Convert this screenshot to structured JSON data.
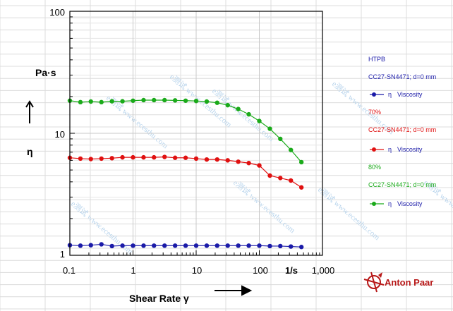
{
  "chart_data": {
    "type": "line",
    "xscale": "log",
    "yscale": "log",
    "xlim": [
      0.1,
      1000
    ],
    "ylim": [
      1,
      100
    ],
    "x_ticks": [
      "0.1",
      "1",
      "10",
      "100",
      "1/s",
      "1,000"
    ],
    "y_ticks": [
      "100",
      "10",
      "1"
    ],
    "x_label": "Shear Rate γ",
    "y_unit": "Pa·s",
    "y_symbol": "η",
    "grid": true,
    "legend_position": "right",
    "legend_groups": [
      {
        "title": "HTPB",
        "subtitle": "CC27-SN4471; d=0 mm",
        "symbol": "η",
        "label": "Viscosity",
        "color": "#1a1aa8"
      },
      {
        "title": "70%",
        "subtitle": "CC27-SN4471; d=0 mm",
        "symbol": "η",
        "label": "Viscosity",
        "color": "#e01010"
      },
      {
        "title": "80%",
        "subtitle": "CC27-SN4471; d=0 mm",
        "symbol": "η",
        "label": "Viscosity",
        "color": "#1aaa1a"
      }
    ],
    "series": [
      {
        "name": "HTPB",
        "color": "#1a1aa8",
        "x": [
          0.1,
          0.147,
          0.215,
          0.316,
          0.464,
          0.681,
          1.0,
          1.47,
          2.15,
          3.16,
          4.64,
          6.81,
          10,
          14.7,
          21.5,
          31.6,
          46.4,
          68.1,
          100,
          147,
          215,
          316,
          464
        ],
        "y": [
          1.21,
          1.2,
          1.21,
          1.23,
          1.19,
          1.2,
          1.2,
          1.2,
          1.2,
          1.2,
          1.2,
          1.2,
          1.2,
          1.2,
          1.2,
          1.2,
          1.2,
          1.2,
          1.2,
          1.19,
          1.19,
          1.18,
          1.17
        ]
      },
      {
        "name": "70%",
        "color": "#e01010",
        "x": [
          0.1,
          0.147,
          0.215,
          0.316,
          0.464,
          0.681,
          1.0,
          1.47,
          2.15,
          3.16,
          4.64,
          6.81,
          10,
          14.7,
          21.5,
          31.6,
          46.4,
          68.1,
          100,
          147,
          215,
          316,
          464
        ],
        "y": [
          6.3,
          6.2,
          6.15,
          6.2,
          6.25,
          6.35,
          6.35,
          6.35,
          6.35,
          6.4,
          6.3,
          6.3,
          6.2,
          6.1,
          6.1,
          6.0,
          5.85,
          5.7,
          5.45,
          4.5,
          4.3,
          4.1,
          3.6
        ]
      },
      {
        "name": "80%",
        "color": "#1aaa1a",
        "x": [
          0.1,
          0.147,
          0.215,
          0.316,
          0.464,
          0.681,
          1.0,
          1.47,
          2.15,
          3.16,
          4.64,
          6.81,
          10,
          14.7,
          21.5,
          31.6,
          46.4,
          68.1,
          100,
          147,
          215,
          316,
          464
        ],
        "y": [
          18.5,
          18.0,
          18.2,
          18.0,
          18.3,
          18.3,
          18.5,
          18.7,
          18.7,
          18.7,
          18.6,
          18.5,
          18.4,
          18.2,
          17.8,
          17.0,
          15.8,
          14.3,
          12.6,
          10.9,
          9.0,
          7.3,
          5.8
        ]
      }
    ]
  },
  "brand": {
    "name": "Anton Paar",
    "color": "#b81919"
  },
  "watermark": "e测试 www.ecesthu.com"
}
